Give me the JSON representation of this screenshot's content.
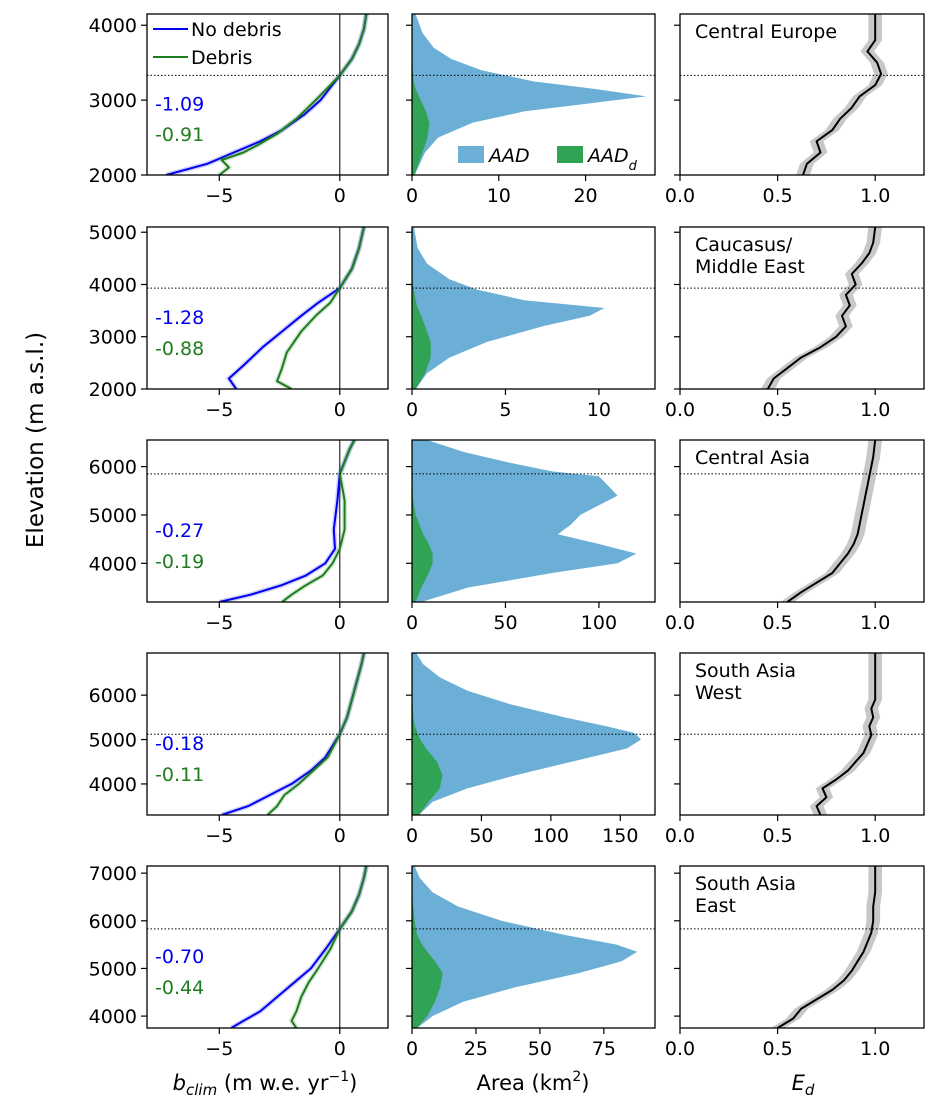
{
  "figure": {
    "ylabel": "Elevation (m a.s.l.)",
    "col_xlabels": {
      "mb": {
        "main": "b",
        "sub": "clim",
        "rest": " (m w.e. yr",
        "sup": "−1",
        "close": ")"
      },
      "area": {
        "main": "Area (km",
        "sup": "2",
        "close": ")"
      },
      "ed": {
        "main": "E",
        "sub": "d"
      }
    },
    "legend_mb": [
      {
        "label": "No debris",
        "color": "#0000ee"
      },
      {
        "label": "Debris",
        "color": "#1e7d1e"
      }
    ],
    "legend_area": [
      {
        "label": "AAD",
        "sub": "",
        "color": "#6baed6"
      },
      {
        "label": "AAD",
        "sub": "d",
        "color": "#31a354"
      }
    ],
    "colors": {
      "nodebris": "#0000ee",
      "debris": "#1e7d1e",
      "aad": "#6baed6",
      "aadd": "#31a354",
      "ed_line": "#000000",
      "ed_band": "#c8c8c8"
    }
  },
  "chart_data": [
    {
      "region": "Central Europe",
      "region_lines": [
        "Central Europe"
      ],
      "ylim": [
        2000,
        4150
      ],
      "yticks": [
        2000,
        3000,
        4000
      ],
      "ela": 3330,
      "mb": {
        "type": "line",
        "xlim": [
          -8.0,
          2.0
        ],
        "xticks": [
          -5,
          0
        ],
        "value_nodebris": "-1.09",
        "value_debris": "-0.91",
        "series": [
          {
            "name": "No debris",
            "x": [
              -7.2,
              -5.5,
              -4.4,
              -3.3,
              -2.4,
              -1.5,
              -0.8,
              0.0,
              0.5,
              0.8,
              1.0,
              1.1
            ],
            "y": [
              2000,
              2150,
              2300,
              2450,
              2600,
              2800,
              3000,
              3330,
              3550,
              3750,
              3950,
              4150
            ]
          },
          {
            "name": "Debris",
            "x": [
              -5.0,
              -4.6,
              -4.9,
              -4.0,
              -3.4,
              -2.6,
              -1.8,
              -1.0,
              0.0,
              0.5,
              0.8,
              1.0,
              1.1
            ],
            "y": [
              2000,
              2100,
              2200,
              2300,
              2400,
              2550,
              2750,
              3000,
              3330,
              3550,
              3750,
              3950,
              4150
            ]
          }
        ]
      },
      "area": {
        "type": "area",
        "xlim": [
          0,
          28
        ],
        "xticks": [
          0,
          10,
          20
        ],
        "y": [
          2000,
          2300,
          2500,
          2700,
          2850,
          2950,
          3050,
          3150,
          3250,
          3400,
          3550,
          3700,
          3900,
          4150
        ],
        "aad": [
          0.3,
          1.5,
          3.0,
          7.0,
          13.0,
          20.0,
          27.0,
          21.0,
          14.0,
          8.0,
          4.5,
          2.5,
          1.2,
          0.4
        ],
        "aadd": [
          0.3,
          1.2,
          1.8,
          2.0,
          1.6,
          1.2,
          0.8,
          0.4,
          0.2,
          0.1,
          0.0,
          0.0,
          0.0,
          0.0
        ]
      },
      "ed": {
        "type": "line",
        "xlim": [
          0.0,
          1.25
        ],
        "xticks": [
          0.0,
          0.5,
          1.0
        ],
        "y": [
          2000,
          2150,
          2300,
          2450,
          2600,
          2750,
          2900,
          3050,
          3200,
          3350,
          3500,
          3650,
          3800,
          3950,
          4150
        ],
        "x": [
          0.63,
          0.65,
          0.72,
          0.7,
          0.78,
          0.82,
          0.88,
          0.92,
          1.0,
          1.03,
          1.01,
          0.96,
          1.0,
          1.0,
          1.0
        ]
      }
    },
    {
      "region": "Caucasus/Middle East",
      "region_lines": [
        "Caucasus/",
        "Middle East"
      ],
      "ylim": [
        2000,
        5100
      ],
      "yticks": [
        2000,
        3000,
        4000,
        5000
      ],
      "ela": 3930,
      "mb": {
        "type": "line",
        "xlim": [
          -8.0,
          2.0
        ],
        "xticks": [
          -5,
          0
        ],
        "value_nodebris": "-1.28",
        "value_debris": "-0.88",
        "series": [
          {
            "name": "No debris",
            "x": [
              -4.3,
              -4.6,
              -4.0,
              -3.2,
              -2.4,
              -1.6,
              -0.9,
              0.0,
              0.5,
              0.8,
              1.0
            ],
            "y": [
              2000,
              2200,
              2450,
              2800,
              3100,
              3400,
              3650,
              3930,
              4300,
              4700,
              5100
            ]
          },
          {
            "name": "Debris",
            "x": [
              -2.0,
              -2.6,
              -2.4,
              -2.2,
              -1.6,
              -1.0,
              -0.4,
              0.0,
              0.5,
              0.8,
              1.0
            ],
            "y": [
              2000,
              2150,
              2400,
              2700,
              3100,
              3400,
              3650,
              3930,
              4300,
              4700,
              5100
            ]
          }
        ]
      },
      "area": {
        "type": "area",
        "xlim": [
          0,
          13
        ],
        "xticks": [
          0,
          5,
          10
        ],
        "y": [
          2000,
          2300,
          2600,
          2900,
          3200,
          3400,
          3550,
          3700,
          3900,
          4100,
          4400,
          4700,
          5100
        ],
        "aad": [
          0.2,
          0.8,
          2.0,
          4.0,
          7.0,
          9.5,
          10.3,
          6.0,
          3.5,
          2.0,
          0.8,
          0.3,
          0.1
        ],
        "aadd": [
          0.2,
          0.7,
          1.0,
          1.0,
          0.7,
          0.5,
          0.3,
          0.2,
          0.1,
          0.0,
          0.0,
          0.0,
          0.0
        ]
      },
      "ed": {
        "type": "line",
        "xlim": [
          0.0,
          1.25
        ],
        "xticks": [
          0.0,
          0.5,
          1.0
        ],
        "y": [
          2000,
          2200,
          2400,
          2600,
          2800,
          3000,
          3200,
          3400,
          3600,
          3800,
          4000,
          4200,
          4400,
          4600,
          4800,
          5100
        ],
        "x": [
          0.45,
          0.48,
          0.55,
          0.62,
          0.72,
          0.8,
          0.85,
          0.83,
          0.87,
          0.85,
          0.9,
          0.88,
          0.93,
          0.97,
          0.99,
          1.0
        ]
      }
    },
    {
      "region": "Central Asia",
      "region_lines": [
        "Central Asia"
      ],
      "ylim": [
        3200,
        6550
      ],
      "yticks": [
        4000,
        5000,
        6000
      ],
      "ela": 5850,
      "mb": {
        "type": "line",
        "xlim": [
          -8.0,
          2.0
        ],
        "xticks": [
          -5,
          0
        ],
        "value_nodebris": "-0.27",
        "value_debris": "-0.19",
        "series": [
          {
            "name": "No debris",
            "x": [
              -5.0,
              -3.7,
              -2.4,
              -1.4,
              -0.6,
              -0.2,
              -0.25,
              -0.1,
              0.0,
              0.2,
              0.4,
              0.6
            ],
            "y": [
              3200,
              3350,
              3550,
              3750,
              4000,
              4300,
              4700,
              5300,
              5850,
              6100,
              6350,
              6550
            ]
          },
          {
            "name": "Debris",
            "x": [
              -2.4,
              -2.0,
              -1.4,
              -0.7,
              -0.3,
              0.0,
              0.2,
              0.2,
              0.0,
              0.2,
              0.4,
              0.6
            ],
            "y": [
              3200,
              3350,
              3550,
              3750,
              4000,
              4300,
              4700,
              5300,
              5850,
              6100,
              6350,
              6550
            ]
          }
        ]
      },
      "area": {
        "type": "area",
        "xlim": [
          0,
          130
        ],
        "xticks": [
          0,
          50,
          100
        ],
        "y": [
          3200,
          3500,
          3800,
          4000,
          4200,
          4400,
          4600,
          4800,
          5000,
          5200,
          5400,
          5600,
          5800,
          5900,
          6100,
          6300,
          6550
        ],
        "aad": [
          5,
          30,
          75,
          110,
          120,
          100,
          78,
          85,
          90,
          100,
          110,
          105,
          100,
          75,
          50,
          28,
          8
        ],
        "aadd": [
          2,
          5,
          9,
          11,
          11,
          9,
          6,
          4,
          2,
          1,
          0.5,
          0.3,
          0.2,
          0.1,
          0,
          0,
          0
        ]
      },
      "ed": {
        "type": "line",
        "xlim": [
          0.0,
          1.25
        ],
        "xticks": [
          0.0,
          0.5,
          1.0
        ],
        "y": [
          3200,
          3400,
          3600,
          3800,
          4000,
          4200,
          4400,
          4600,
          4800,
          5000,
          5200,
          5400,
          5600,
          5800,
          6000,
          6200,
          6550
        ],
        "x": [
          0.55,
          0.62,
          0.7,
          0.78,
          0.82,
          0.86,
          0.89,
          0.91,
          0.92,
          0.93,
          0.94,
          0.95,
          0.96,
          0.97,
          0.98,
          0.99,
          1.0
        ]
      }
    },
    {
      "region": "South Asia West",
      "region_lines": [
        "South Asia",
        "West"
      ],
      "ylim": [
        3300,
        6950
      ],
      "yticks": [
        4000,
        5000,
        6000
      ],
      "ela": 5120,
      "mb": {
        "type": "line",
        "xlim": [
          -8.0,
          2.0
        ],
        "xticks": [
          -5,
          0
        ],
        "value_nodebris": "-0.18",
        "value_debris": "-0.11",
        "series": [
          {
            "name": "No debris",
            "x": [
              -4.9,
              -3.8,
              -2.9,
              -2.0,
              -1.2,
              -0.6,
              0.0,
              0.3,
              0.5,
              0.7,
              0.9,
              1.0
            ],
            "y": [
              3300,
              3500,
              3750,
              4000,
              4300,
              4600,
              5120,
              5500,
              5900,
              6300,
              6700,
              6950
            ]
          },
          {
            "name": "Debris",
            "x": [
              -3.0,
              -2.6,
              -2.3,
              -1.7,
              -1.1,
              -0.5,
              0.0,
              0.3,
              0.5,
              0.7,
              0.9,
              1.0
            ],
            "y": [
              3300,
              3500,
              3750,
              4000,
              4300,
              4600,
              5120,
              5500,
              5900,
              6300,
              6700,
              6950
            ]
          }
        ]
      },
      "area": {
        "type": "area",
        "xlim": [
          0,
          175
        ],
        "xticks": [
          0,
          50,
          100,
          150
        ],
        "y": [
          3300,
          3600,
          3900,
          4200,
          4500,
          4800,
          5000,
          5150,
          5300,
          5500,
          5800,
          6100,
          6400,
          6700,
          6950
        ],
        "aad": [
          5,
          15,
          40,
          75,
          115,
          155,
          165,
          160,
          140,
          110,
          70,
          40,
          20,
          8,
          3
        ],
        "aadd": [
          5,
          12,
          20,
          22,
          18,
          10,
          6,
          4,
          2,
          1,
          0.5,
          0,
          0,
          0,
          0
        ]
      },
      "ed": {
        "type": "line",
        "xlim": [
          0.0,
          1.25
        ],
        "xticks": [
          0.0,
          0.5,
          1.0
        ],
        "y": [
          3300,
          3500,
          3700,
          3900,
          4100,
          4300,
          4500,
          4700,
          4900,
          5100,
          5300,
          5500,
          5700,
          5900,
          6200,
          6500,
          6950
        ],
        "x": [
          0.72,
          0.7,
          0.75,
          0.73,
          0.8,
          0.86,
          0.9,
          0.94,
          0.96,
          0.98,
          0.97,
          0.99,
          0.98,
          1.0,
          1.0,
          1.0,
          1.0
        ]
      }
    },
    {
      "region": "South Asia East",
      "region_lines": [
        "South Asia",
        "East"
      ],
      "ylim": [
        3750,
        7150
      ],
      "yticks": [
        4000,
        5000,
        6000,
        7000
      ],
      "ela": 5830,
      "mb": {
        "type": "line",
        "xlim": [
          -8.0,
          2.0
        ],
        "xticks": [
          -5,
          0
        ],
        "value_nodebris": "-0.70",
        "value_debris": "-0.44",
        "series": [
          {
            "name": "No debris",
            "x": [
              -4.5,
              -4.0,
              -3.3,
              -2.6,
              -1.9,
              -1.2,
              -0.6,
              0.0,
              0.5,
              0.8,
              1.0,
              1.1
            ],
            "y": [
              3750,
              3900,
              4100,
              4400,
              4700,
              5000,
              5400,
              5830,
              6200,
              6550,
              6900,
              7150
            ]
          },
          {
            "name": "Debris",
            "x": [
              -1.8,
              -2.0,
              -1.8,
              -1.6,
              -1.3,
              -0.9,
              -0.4,
              0.0,
              0.5,
              0.8,
              1.0,
              1.1
            ],
            "y": [
              3750,
              3900,
              4100,
              4400,
              4700,
              5000,
              5400,
              5830,
              6200,
              6550,
              6900,
              7150
            ]
          }
        ]
      },
      "area": {
        "type": "area",
        "xlim": [
          0,
          95
        ],
        "xticks": [
          0,
          25,
          50,
          75
        ],
        "y": [
          3750,
          4000,
          4300,
          4600,
          4900,
          5150,
          5350,
          5500,
          5700,
          6000,
          6300,
          6600,
          6900,
          7150
        ],
        "aad": [
          2,
          8,
          20,
          40,
          65,
          82,
          88,
          80,
          60,
          35,
          18,
          8,
          3,
          1
        ],
        "aadd": [
          2,
          6,
          9,
          11,
          12,
          9,
          6,
          4,
          2,
          1,
          0.5,
          0,
          0,
          0
        ]
      },
      "ed": {
        "type": "line",
        "xlim": [
          0.0,
          1.25
        ],
        "xticks": [
          0.0,
          0.5,
          1.0
        ],
        "y": [
          3750,
          3950,
          4150,
          4350,
          4550,
          4750,
          4950,
          5150,
          5350,
          5550,
          5750,
          6000,
          6300,
          6600,
          6900,
          7150
        ],
        "x": [
          0.5,
          0.58,
          0.62,
          0.7,
          0.78,
          0.84,
          0.88,
          0.91,
          0.94,
          0.96,
          0.98,
          0.99,
          0.99,
          1.0,
          1.0,
          1.0
        ]
      }
    }
  ]
}
